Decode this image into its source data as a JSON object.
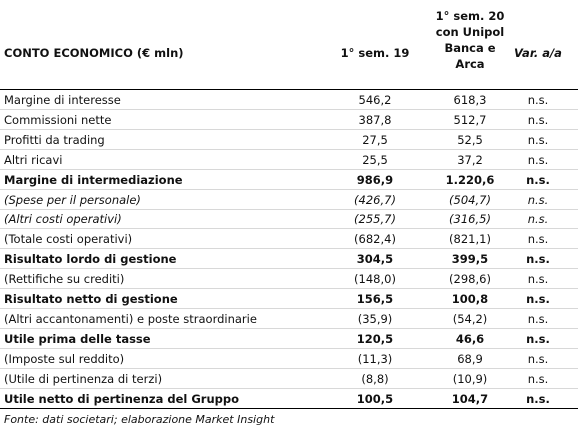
{
  "table": {
    "header": [
      "CONTO ECONOMICO (€ mln)",
      "1° sem. 19",
      [
        "1° sem. 20",
        "con Unipol",
        "Banca e",
        "Arca"
      ],
      "Var. a/a"
    ],
    "rows": [
      [
        "Margine di interesse",
        "546,2",
        "618,3",
        "n.s."
      ],
      [
        "Commissioni nette",
        "387,8",
        "512,7",
        "n.s."
      ],
      [
        "Profitti da trading",
        "27,5",
        "52,5",
        "n.s."
      ],
      [
        "Altri ricavi",
        "25,5",
        "37,2",
        "n.s."
      ],
      [
        "Margine di intermediazione",
        "986,9",
        "1.220,6",
        "n.s."
      ],
      [
        "(Spese per il personale)",
        "(426,7)",
        "(504,7)",
        "n.s."
      ],
      [
        "(Altri costi operativi)",
        "(255,7)",
        "(316,5)",
        "n.s."
      ],
      [
        "(Totale costi operativi)",
        "(682,4)",
        "(821,1)",
        "n.s."
      ],
      [
        "Risultato lordo di gestione",
        "304,5",
        "399,5",
        "n.s."
      ],
      [
        "(Rettifiche su crediti)",
        "(148,0)",
        "(298,6)",
        "n.s."
      ],
      [
        "Risultato netto di gestione",
        "156,5",
        "100,8",
        "n.s."
      ],
      [
        "(Altri accantonamenti) e poste straordinarie",
        "(35,9)",
        "(54,2)",
        "n.s."
      ],
      [
        "Utile prima delle tasse",
        "120,5",
        "46,6",
        "n.s."
      ],
      [
        "(Imposte sul reddito)",
        "(11,3)",
        "68,9",
        "n.s."
      ],
      [
        "(Utile di pertinenza di terzi)",
        "(8,8)",
        "(10,9)",
        "n.s."
      ],
      [
        "Utile netto di pertinenza del Gruppo",
        "100,5",
        "104,7",
        "n.s."
      ]
    ],
    "source": "Fonte: dati societari; elaborazione Market Insight"
  }
}
